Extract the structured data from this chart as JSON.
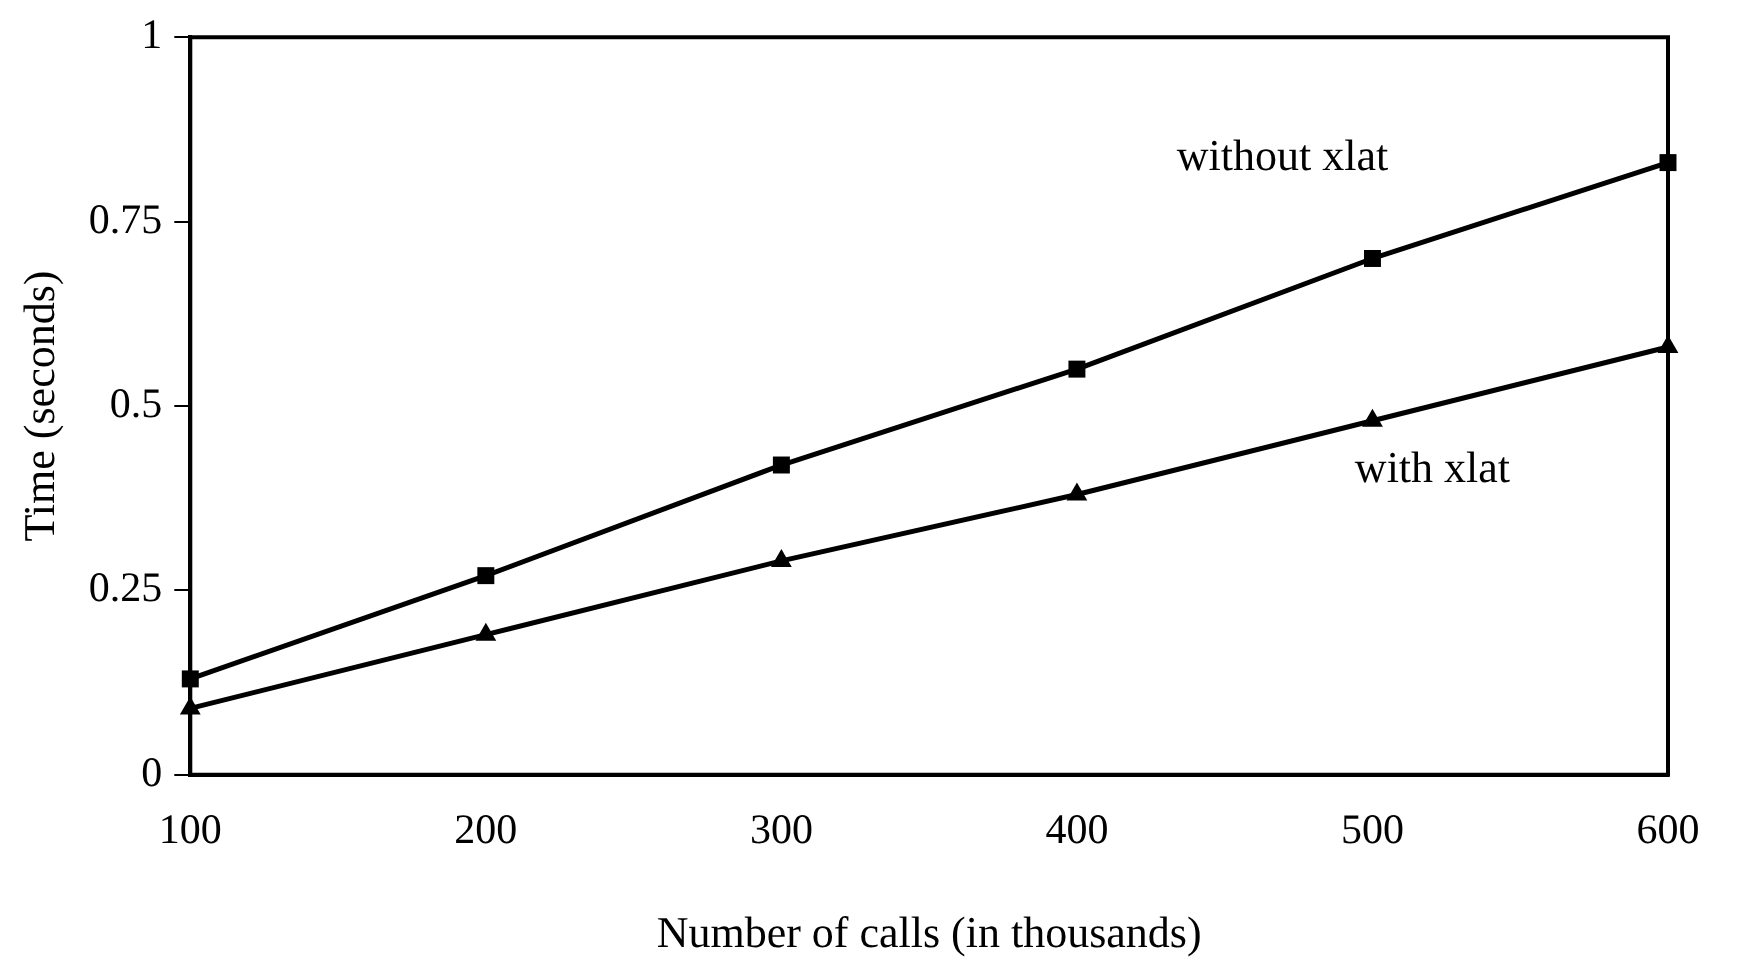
{
  "chart_data": {
    "type": "line",
    "xlabel": "Number of calls (in thousands)",
    "ylabel": "Time (seconds)",
    "x": [
      100,
      200,
      300,
      400,
      500,
      600
    ],
    "series": [
      {
        "name": "without xlat",
        "color": "#000000",
        "marker": "square",
        "values": [
          0.13,
          0.27,
          0.42,
          0.55,
          0.7,
          0.83
        ]
      },
      {
        "name": "with xlat",
        "color": "#000000",
        "marker": "triangle",
        "values": [
          0.09,
          0.19,
          0.29,
          0.38,
          0.48,
          0.58
        ]
      }
    ],
    "xlim": [
      100,
      600
    ],
    "xticks": [
      100,
      200,
      300,
      400,
      500,
      600
    ],
    "ylim": [
      0,
      1
    ],
    "yticks": [
      0,
      0.25,
      0.5,
      0.75,
      1
    ],
    "grid": false,
    "legend": false,
    "line_style": "solid"
  }
}
